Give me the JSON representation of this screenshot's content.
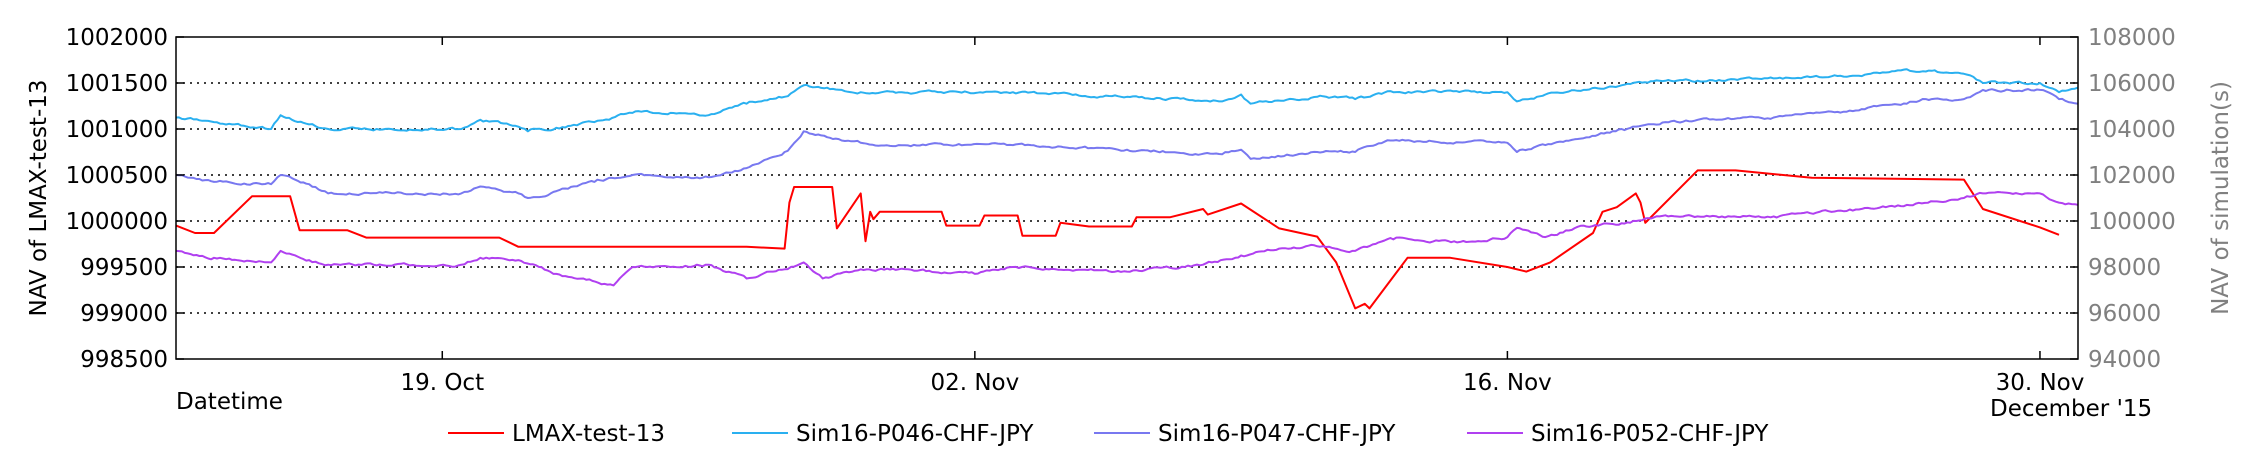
{
  "chart_data": {
    "type": "line",
    "xlabel": "Datetime",
    "ylabel": "NAV of LMAX-test-13",
    "ylabel_right": "NAV of simulation(s)",
    "ylim": [
      998500,
      1002000
    ],
    "ylim_right": [
      94000,
      108000
    ],
    "yticks": [
      "998500",
      "999000",
      "999500",
      "1000000",
      "1000500",
      "1001000",
      "1001500",
      "1002000"
    ],
    "yticks_right": [
      "94000",
      "96000",
      "98000",
      "100000",
      "102000",
      "104000",
      "106000",
      "108000"
    ],
    "xlim": [
      "2015-10-12",
      "2015-12-01"
    ],
    "xticks": [
      {
        "date": "2015-10-19",
        "label": "19. Oct"
      },
      {
        "date": "2015-11-02",
        "label": "02. Nov"
      },
      {
        "date": "2015-11-16",
        "label": "16. Nov"
      },
      {
        "date": "2015-11-30",
        "label": "30. Nov"
      }
    ],
    "x_period_label": "December '15",
    "grid": true,
    "legend_position": "bottom",
    "series": [
      {
        "name": "LMAX-test-13",
        "color": "#ff0000",
        "axis": "left",
        "noise": 0,
        "points": [
          [
            "2015-10-12",
            999950
          ],
          [
            "2015-10-12 12:00",
            999870
          ],
          [
            "2015-10-13",
            999870
          ],
          [
            "2015-10-14",
            1000270
          ],
          [
            "2015-10-15",
            1000270
          ],
          [
            "2015-10-15 06:00",
            999900
          ],
          [
            "2015-10-16 12:00",
            999900
          ],
          [
            "2015-10-17",
            999820
          ],
          [
            "2015-10-20 12:00",
            999820
          ],
          [
            "2015-10-21",
            999720
          ],
          [
            "2015-10-27",
            999720
          ],
          [
            "2015-10-28",
            999700
          ],
          [
            "2015-10-28 03:00",
            1000200
          ],
          [
            "2015-10-28 06:00",
            1000370
          ],
          [
            "2015-10-29 06:00",
            1000370
          ],
          [
            "2015-10-29 09:00",
            999920
          ],
          [
            "2015-10-30",
            1000300
          ],
          [
            "2015-10-30 03:00",
            999780
          ],
          [
            "2015-10-30 06:00",
            1000100
          ],
          [
            "2015-10-30 08:00",
            1000020
          ],
          [
            "2015-10-30 12:00",
            1000100
          ],
          [
            "2015-11-01 03:00",
            1000100
          ],
          [
            "2015-11-01 06:00",
            999950
          ],
          [
            "2015-11-02 03:00",
            999950
          ],
          [
            "2015-11-02 06:00",
            1000060
          ],
          [
            "2015-11-03 03:00",
            1000060
          ],
          [
            "2015-11-03 06:00",
            999840
          ],
          [
            "2015-11-04 03:00",
            999840
          ],
          [
            "2015-11-04 06:00",
            999980
          ],
          [
            "2015-11-05",
            999940
          ],
          [
            "2015-11-06 03:00",
            999940
          ],
          [
            "2015-11-06 06:00",
            1000040
          ],
          [
            "2015-11-07 03:00",
            1000040
          ],
          [
            "2015-11-08",
            1000130
          ],
          [
            "2015-11-08 03:00",
            1000070
          ],
          [
            "2015-11-09",
            1000190
          ],
          [
            "2015-11-10",
            999920
          ],
          [
            "2015-11-11",
            999830
          ],
          [
            "2015-11-11 12:00",
            999550
          ],
          [
            "2015-11-12",
            999050
          ],
          [
            "2015-11-12 06:00",
            999100
          ],
          [
            "2015-11-12 09:00",
            999050
          ],
          [
            "2015-11-13 09:00",
            999600
          ],
          [
            "2015-11-14 12:00",
            999600
          ],
          [
            "2015-11-16",
            999500
          ],
          [
            "2015-11-16 12:00",
            999450
          ],
          [
            "2015-11-17 03:00",
            999550
          ],
          [
            "2015-11-18 06:00",
            999870
          ],
          [
            "2015-11-18 12:00",
            1000100
          ],
          [
            "2015-11-18 21:00",
            1000150
          ],
          [
            "2015-11-19 09:00",
            1000300
          ],
          [
            "2015-11-19 12:00",
            1000200
          ],
          [
            "2015-11-19 15:00",
            999980
          ],
          [
            "2015-11-21",
            1000550
          ],
          [
            "2015-11-22",
            1000550
          ],
          [
            "2015-11-24",
            1000470
          ],
          [
            "2015-11-28",
            1000450
          ],
          [
            "2015-11-28 12:00",
            1000130
          ],
          [
            "2015-11-30",
            999930
          ],
          [
            "2015-11-30 12:00",
            999850
          ]
        ]
      },
      {
        "name": "Sim16-P046-CHF-JPY",
        "color": "#2ab0f0",
        "axis": "right",
        "noise": 90,
        "points": [
          [
            "2015-10-12",
            104500
          ],
          [
            "2015-10-13",
            104300
          ],
          [
            "2015-10-14 12:00",
            104000
          ],
          [
            "2015-10-14 18:00",
            104600
          ],
          [
            "2015-10-15 12:00",
            104200
          ],
          [
            "2015-10-16",
            104000
          ],
          [
            "2015-10-19 12:00",
            104000
          ],
          [
            "2015-10-20",
            104400
          ],
          [
            "2015-10-21",
            104100
          ],
          [
            "2015-10-21 06:00",
            103900
          ],
          [
            "2015-10-22",
            104050
          ],
          [
            "2015-10-23",
            104300
          ],
          [
            "2015-10-24",
            104700
          ],
          [
            "2015-10-25",
            104700
          ],
          [
            "2015-10-26",
            104600
          ],
          [
            "2015-10-27",
            105100
          ],
          [
            "2015-10-28",
            105400
          ],
          [
            "2015-10-28 12:00",
            105900
          ],
          [
            "2015-10-29 12:00",
            105700
          ],
          [
            "2015-10-30",
            105600
          ],
          [
            "2015-10-31",
            105600
          ],
          [
            "2015-11-03",
            105600
          ],
          [
            "2015-11-06",
            105400
          ],
          [
            "2015-11-08 12:00",
            105200
          ],
          [
            "2015-11-09",
            105500
          ],
          [
            "2015-11-09 06:00",
            105100
          ],
          [
            "2015-11-11",
            105400
          ],
          [
            "2015-11-12",
            105300
          ],
          [
            "2015-11-13",
            105600
          ],
          [
            "2015-11-16",
            105600
          ],
          [
            "2015-11-16 06:00",
            105200
          ],
          [
            "2015-11-17",
            105500
          ],
          [
            "2015-11-18",
            105700
          ],
          [
            "2015-11-19",
            105900
          ],
          [
            "2015-11-20",
            106100
          ],
          [
            "2015-11-21",
            106100
          ],
          [
            "2015-11-23",
            106200
          ],
          [
            "2015-11-25",
            106300
          ],
          [
            "2015-11-26 12:00",
            106600
          ],
          [
            "2015-11-27",
            106500
          ],
          [
            "2015-11-28",
            106400
          ],
          [
            "2015-11-28 12:00",
            106000
          ],
          [
            "2015-11-30",
            106000
          ],
          [
            "2015-11-30 12:00",
            105600
          ],
          [
            "2015-12-01",
            105800
          ]
        ]
      },
      {
        "name": "Sim16-P047-CHF-JPY",
        "color": "#7878f0",
        "axis": "right",
        "noise": 90,
        "points": [
          [
            "2015-10-12",
            102000
          ],
          [
            "2015-10-13",
            101700
          ],
          [
            "2015-10-14 12:00",
            101600
          ],
          [
            "2015-10-14 18:00",
            102000
          ],
          [
            "2015-10-15 12:00",
            101600
          ],
          [
            "2015-10-16",
            101200
          ],
          [
            "2015-10-19 12:00",
            101200
          ],
          [
            "2015-10-20",
            101500
          ],
          [
            "2015-10-21",
            101200
          ],
          [
            "2015-10-21 06:00",
            101000
          ],
          [
            "2015-10-22",
            101300
          ],
          [
            "2015-10-23",
            101700
          ],
          [
            "2015-10-24",
            102000
          ],
          [
            "2015-10-25",
            101900
          ],
          [
            "2015-10-26",
            101900
          ],
          [
            "2015-10-27",
            102300
          ],
          [
            "2015-10-28",
            103000
          ],
          [
            "2015-10-28 12:00",
            103900
          ],
          [
            "2015-10-29 12:00",
            103500
          ],
          [
            "2015-10-30",
            103400
          ],
          [
            "2015-10-31",
            103300
          ],
          [
            "2015-11-03",
            103300
          ],
          [
            "2015-11-06",
            103100
          ],
          [
            "2015-11-08 12:00",
            102900
          ],
          [
            "2015-11-09",
            103100
          ],
          [
            "2015-11-09 06:00",
            102700
          ],
          [
            "2015-11-11",
            103000
          ],
          [
            "2015-11-12",
            103000
          ],
          [
            "2015-11-13",
            103500
          ],
          [
            "2015-11-16",
            103400
          ],
          [
            "2015-11-16 06:00",
            103000
          ],
          [
            "2015-11-17",
            103300
          ],
          [
            "2015-11-18",
            103600
          ],
          [
            "2015-11-19",
            104000
          ],
          [
            "2015-11-20",
            104200
          ],
          [
            "2015-11-21",
            104400
          ],
          [
            "2015-11-23",
            104500
          ],
          [
            "2015-11-25",
            104800
          ],
          [
            "2015-11-26 12:00",
            105100
          ],
          [
            "2015-11-27",
            105300
          ],
          [
            "2015-11-28",
            105300
          ],
          [
            "2015-11-28 12:00",
            105700
          ],
          [
            "2015-11-30",
            105700
          ],
          [
            "2015-11-30 12:00",
            105300
          ],
          [
            "2015-12-01",
            105100
          ]
        ]
      },
      {
        "name": "Sim16-P052-CHF-JPY",
        "color": "#b040f0",
        "axis": "right",
        "noise": 90,
        "points": [
          [
            "2015-10-12",
            98700
          ],
          [
            "2015-10-13",
            98400
          ],
          [
            "2015-10-14 12:00",
            98200
          ],
          [
            "2015-10-14 18:00",
            98700
          ],
          [
            "2015-10-15 12:00",
            98300
          ],
          [
            "2015-10-16",
            98100
          ],
          [
            "2015-10-19 12:00",
            98100
          ],
          [
            "2015-10-20",
            98400
          ],
          [
            "2015-10-21",
            98300
          ],
          [
            "2015-10-22",
            97700
          ],
          [
            "2015-10-23 12:00",
            97200
          ],
          [
            "2015-10-24",
            98000
          ],
          [
            "2015-10-25",
            98000
          ],
          [
            "2015-10-26",
            98100
          ],
          [
            "2015-10-27",
            97500
          ],
          [
            "2015-10-28",
            97900
          ],
          [
            "2015-10-28 12:00",
            98200
          ],
          [
            "2015-10-29",
            97500
          ],
          [
            "2015-10-30",
            97900
          ],
          [
            "2015-10-31",
            97900
          ],
          [
            "2015-11-02",
            97700
          ],
          [
            "2015-11-03",
            98000
          ],
          [
            "2015-11-06",
            97800
          ],
          [
            "2015-11-08",
            98100
          ],
          [
            "2015-11-09",
            98500
          ],
          [
            "2015-11-10",
            98800
          ],
          [
            "2015-11-11",
            98900
          ],
          [
            "2015-11-12",
            98700
          ],
          [
            "2015-11-13",
            99200
          ],
          [
            "2015-11-15",
            99100
          ],
          [
            "2015-11-16",
            99300
          ],
          [
            "2015-11-16 06:00",
            99700
          ],
          [
            "2015-11-17",
            99300
          ],
          [
            "2015-11-18",
            99800
          ],
          [
            "2015-11-19",
            99900
          ],
          [
            "2015-11-20",
            100200
          ],
          [
            "2015-11-21",
            100200
          ],
          [
            "2015-11-23",
            100200
          ],
          [
            "2015-11-25",
            100500
          ],
          [
            "2015-11-26 12:00",
            100700
          ],
          [
            "2015-11-28",
            101000
          ],
          [
            "2015-11-28 12:00",
            101200
          ],
          [
            "2015-11-30",
            101200
          ],
          [
            "2015-11-30 12:00",
            100800
          ],
          [
            "2015-12-01",
            100700
          ]
        ]
      }
    ]
  }
}
